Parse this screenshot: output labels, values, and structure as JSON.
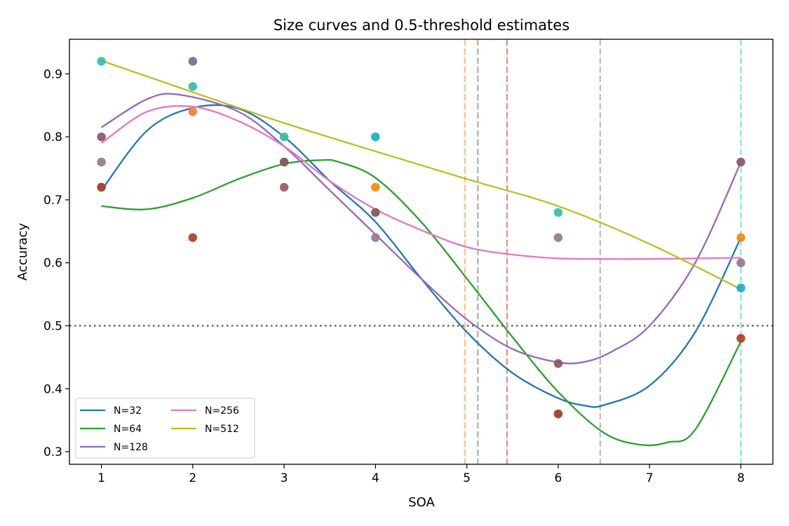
{
  "chart_data": {
    "type": "line",
    "title": "Size curves and 0.5-threshold estimates",
    "xlabel": "SOA",
    "ylabel": "Accuracy",
    "xlim": [
      0.65,
      8.35
    ],
    "ylim": [
      0.28,
      0.955
    ],
    "xticks": [
      "1",
      "2",
      "3",
      "4",
      "5",
      "6",
      "7",
      "8"
    ],
    "yticks": [
      "0.3",
      "0.4",
      "0.5",
      "0.6",
      "0.7",
      "0.8",
      "0.9"
    ],
    "grid": false,
    "legend_position": "lower-left",
    "threshold": 0.5,
    "series": [
      {
        "name": "N=32",
        "color": "#1f77b4",
        "fit": [
          [
            1,
            0.715
          ],
          [
            1.5,
            0.81
          ],
          [
            2,
            0.846
          ],
          [
            2.5,
            0.845
          ],
          [
            3,
            0.8
          ],
          [
            3.5,
            0.73
          ],
          [
            4,
            0.665
          ],
          [
            4.5,
            0.575
          ],
          [
            5,
            0.49
          ],
          [
            5.5,
            0.425
          ],
          [
            6,
            0.385
          ],
          [
            6.3,
            0.373
          ],
          [
            6.5,
            0.374
          ],
          [
            7,
            0.405
          ],
          [
            7.5,
            0.49
          ],
          [
            8,
            0.64
          ]
        ],
        "points": [
          [
            1,
            0.72
          ],
          [
            2,
            0.92
          ],
          [
            3,
            0.76
          ],
          [
            4,
            0.8
          ],
          [
            6,
            0.36
          ],
          [
            8,
            0.56
          ]
        ]
      },
      {
        "name": "N=64",
        "color": "#2ca02c",
        "fit": [
          [
            1,
            0.69
          ],
          [
            1.5,
            0.685
          ],
          [
            2,
            0.703
          ],
          [
            2.5,
            0.733
          ],
          [
            3,
            0.757
          ],
          [
            3.4,
            0.763
          ],
          [
            3.6,
            0.76
          ],
          [
            4,
            0.735
          ],
          [
            4.5,
            0.665
          ],
          [
            5,
            0.575
          ],
          [
            5.5,
            0.482
          ],
          [
            6,
            0.395
          ],
          [
            6.5,
            0.33
          ],
          [
            6.9,
            0.311
          ],
          [
            7.2,
            0.315
          ],
          [
            7.5,
            0.335
          ],
          [
            8,
            0.475
          ]
        ],
        "points": [
          [
            1,
            0.72
          ],
          [
            2,
            0.64
          ],
          [
            3,
            0.76
          ],
          [
            4,
            0.68
          ],
          [
            6,
            0.36
          ],
          [
            8,
            0.48
          ]
        ]
      },
      {
        "name": "N=128",
        "color": "#9467bd",
        "fit": [
          [
            1,
            0.815
          ],
          [
            1.5,
            0.86
          ],
          [
            1.85,
            0.867
          ],
          [
            2.5,
            0.84
          ],
          [
            3,
            0.785
          ],
          [
            3.5,
            0.715
          ],
          [
            4,
            0.645
          ],
          [
            4.5,
            0.575
          ],
          [
            5,
            0.51
          ],
          [
            5.5,
            0.463
          ],
          [
            6,
            0.442
          ],
          [
            6.3,
            0.443
          ],
          [
            6.6,
            0.46
          ],
          [
            7,
            0.5
          ],
          [
            7.5,
            0.6
          ],
          [
            8,
            0.76
          ]
        ],
        "points": [
          [
            1,
            0.8
          ],
          [
            2,
            0.92
          ],
          [
            3,
            0.76
          ],
          [
            4,
            0.68
          ],
          [
            6,
            0.44
          ],
          [
            8,
            0.76
          ]
        ]
      },
      {
        "name": "N=256",
        "color": "#e377c2",
        "fit": [
          [
            1,
            0.79
          ],
          [
            1.5,
            0.84
          ],
          [
            2,
            0.848
          ],
          [
            2.5,
            0.825
          ],
          [
            3,
            0.785
          ],
          [
            3.5,
            0.73
          ],
          [
            4,
            0.685
          ],
          [
            4.5,
            0.652
          ],
          [
            5,
            0.625
          ],
          [
            5.5,
            0.613
          ],
          [
            6,
            0.607
          ],
          [
            6.5,
            0.606
          ],
          [
            7,
            0.606
          ],
          [
            7.5,
            0.607
          ],
          [
            8,
            0.608
          ]
        ],
        "points": [
          [
            1,
            0.76
          ],
          [
            2,
            0.84
          ],
          [
            3,
            0.72
          ],
          [
            4,
            0.64
          ],
          [
            6,
            0.64
          ],
          [
            8,
            0.6
          ]
        ]
      },
      {
        "name": "N=512",
        "color": "#bcbd22",
        "fit": [
          [
            1,
            0.921
          ],
          [
            2,
            0.871
          ],
          [
            3,
            0.822
          ],
          [
            4,
            0.777
          ],
          [
            5,
            0.733
          ],
          [
            6,
            0.69
          ],
          [
            7,
            0.63
          ],
          [
            8,
            0.558
          ]
        ],
        "points": [
          [
            1,
            0.92
          ],
          [
            2,
            0.88
          ],
          [
            3,
            0.8
          ],
          [
            4,
            0.72
          ],
          [
            6,
            0.68
          ],
          [
            8,
            0.64
          ]
        ]
      }
    ],
    "threshold_lines": [
      {
        "x": 4.98,
        "color": "#ffbf7f"
      },
      {
        "x": 5.12,
        "color": "#bfa8a0"
      },
      {
        "x": 5.44,
        "color": "#e88a8b"
      },
      {
        "x": 6.46,
        "color": "#bdbdbd"
      },
      {
        "x": 8.0,
        "color": "#8adfe9"
      }
    ],
    "extra_point_colors": [
      "#d62728",
      "#8c564b",
      "#7f7f7f",
      "#17becf",
      "#ff7f0e"
    ]
  }
}
